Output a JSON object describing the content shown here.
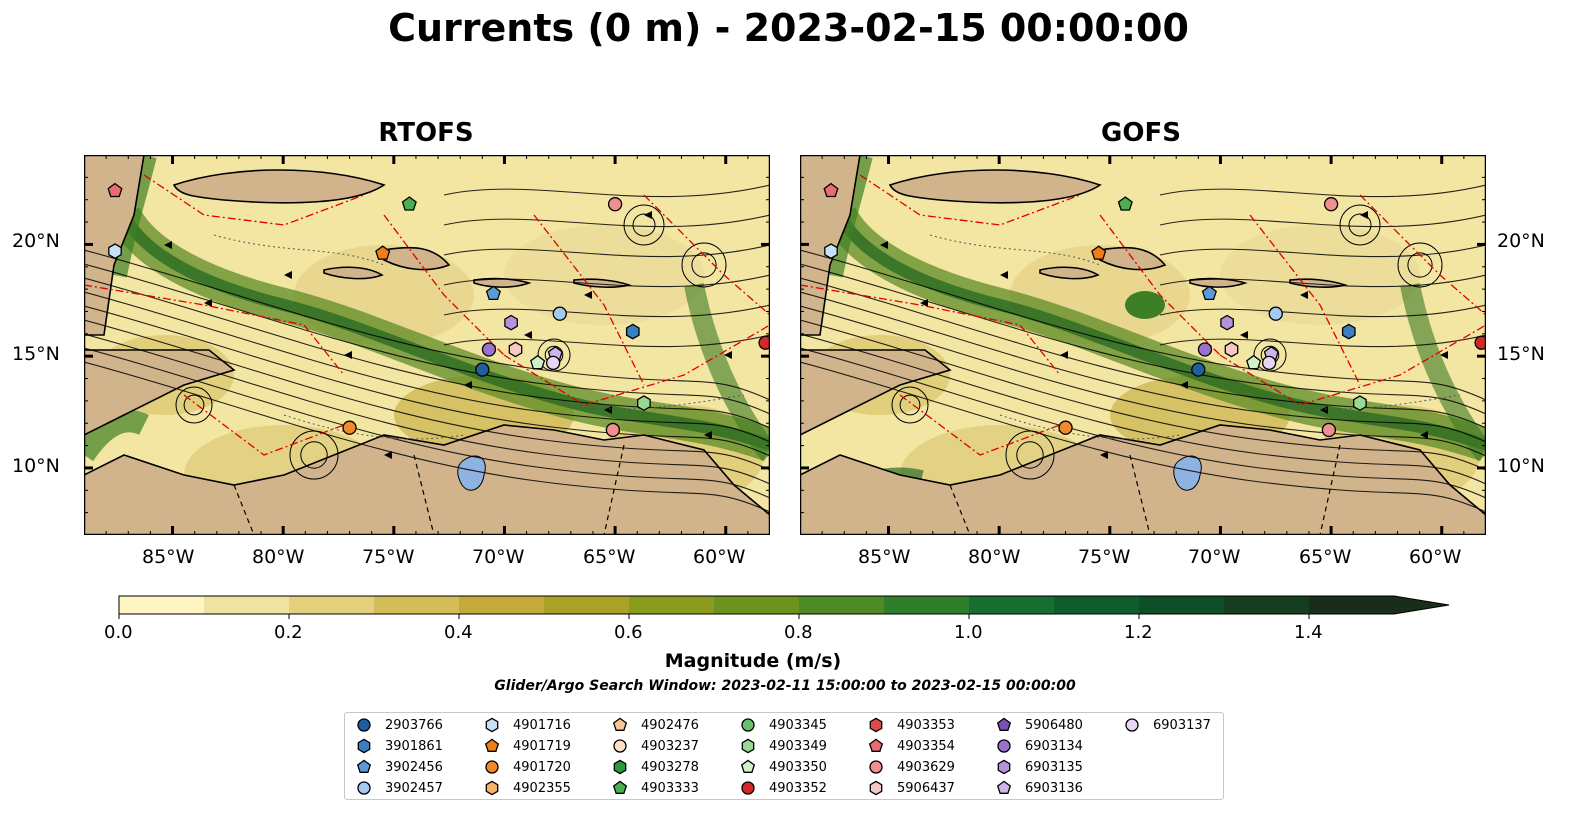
{
  "title": "Currents (0 m) - 2023-02-15 00:00:00",
  "panels": [
    {
      "id": "rtofs",
      "title": "RTOFS"
    },
    {
      "id": "gofs",
      "title": "GOFS"
    }
  ],
  "axes": {
    "lon_labels": [
      "85°W",
      "80°W",
      "75°W",
      "70°W",
      "65°W",
      "60°W"
    ],
    "lat_labels": [
      "20°N",
      "15°N",
      "10°N"
    ],
    "lon_range": [
      -89.0,
      -58.0
    ],
    "lat_range": [
      7.0,
      24.0
    ]
  },
  "colorbar": {
    "label": "Magnitude (m/s)",
    "ticks": [
      "0.0",
      "0.2",
      "0.4",
      "0.6",
      "0.8",
      "1.0",
      "1.2",
      "1.4"
    ],
    "range": [
      0.0,
      1.5
    ],
    "extend": "max",
    "colors": [
      "#fdf6c3",
      "#f0e2a0",
      "#e3cf7c",
      "#d4bc58",
      "#c3aa3a",
      "#a9a227",
      "#8a9b1e",
      "#6c9320",
      "#4e8a25",
      "#2f7e2b",
      "#166e30",
      "#0f5d2c",
      "#0d4d27",
      "#153d20",
      "#1a2d18"
    ]
  },
  "search_window": "Glider/Argo Search Window: 2023-02-11 15:00:00 to 2023-02-15 00:00:00",
  "legend": [
    {
      "id": "2903766",
      "marker": "circle",
      "color": "#1f5fa0"
    },
    {
      "id": "3901861",
      "marker": "hexagon",
      "color": "#3a7fc0"
    },
    {
      "id": "3902456",
      "marker": "pentagon",
      "color": "#5a9ad8"
    },
    {
      "id": "3902457",
      "marker": "circle",
      "color": "#a3cbef"
    },
    {
      "id": "4901716",
      "marker": "hexagon",
      "color": "#c6e0f7"
    },
    {
      "id": "4901719",
      "marker": "pentagon",
      "color": "#f07d18"
    },
    {
      "id": "4901720",
      "marker": "circle",
      "color": "#f28a2a"
    },
    {
      "id": "4902355",
      "marker": "hexagon",
      "color": "#f8b26a"
    },
    {
      "id": "4902476",
      "marker": "pentagon",
      "color": "#f9c594"
    },
    {
      "id": "4903237",
      "marker": "circle",
      "color": "#fde0c3"
    },
    {
      "id": "4903278",
      "marker": "hexagon",
      "color": "#2a9a3a"
    },
    {
      "id": "4903333",
      "marker": "pentagon",
      "color": "#4cb04f"
    },
    {
      "id": "4903345",
      "marker": "circle",
      "color": "#6ac06d"
    },
    {
      "id": "4903349",
      "marker": "hexagon",
      "color": "#9ad895"
    },
    {
      "id": "4903350",
      "marker": "pentagon",
      "color": "#cff2c9"
    },
    {
      "id": "4903352",
      "marker": "circle",
      "color": "#d62728"
    },
    {
      "id": "4903353",
      "marker": "hexagon",
      "color": "#e04a4c"
    },
    {
      "id": "4903354",
      "marker": "pentagon",
      "color": "#ea6a70"
    },
    {
      "id": "4903629",
      "marker": "circle",
      "color": "#f08f8f"
    },
    {
      "id": "5906437",
      "marker": "hexagon",
      "color": "#f8c8c4"
    },
    {
      "id": "5906480",
      "marker": "pentagon",
      "color": "#7a52b3"
    },
    {
      "id": "6903134",
      "marker": "circle",
      "color": "#9a72cc"
    },
    {
      "id": "6903135",
      "marker": "hexagon",
      "color": "#b593dc"
    },
    {
      "id": "6903136",
      "marker": "pentagon",
      "color": "#ceb6ea"
    },
    {
      "id": "6903137",
      "marker": "circle",
      "color": "#e6d6f4"
    }
  ],
  "floats": [
    {
      "id": "4903354",
      "lon": -87.6,
      "lat": 22.4
    },
    {
      "id": "4901716",
      "lon": -87.6,
      "lat": 19.7
    },
    {
      "id": "4903333",
      "lon": -74.3,
      "lat": 21.8
    },
    {
      "id": "4901719",
      "lon": -75.5,
      "lat": 19.6
    },
    {
      "id": "4903629",
      "lon": -65.0,
      "lat": 21.8
    },
    {
      "id": "3902456",
      "lon": -70.5,
      "lat": 17.8
    },
    {
      "id": "6903135",
      "lon": -69.7,
      "lat": 16.5
    },
    {
      "id": "3902457",
      "lon": -67.5,
      "lat": 16.9
    },
    {
      "id": "3901861",
      "lon": -64.2,
      "lat": 16.1
    },
    {
      "id": "6903134",
      "lon": -70.7,
      "lat": 15.3
    },
    {
      "id": "5906437",
      "lon": -69.5,
      "lat": 15.3
    },
    {
      "id": "6903136",
      "lon": -67.7,
      "lat": 15.1
    },
    {
      "id": "4903350",
      "lon": -68.5,
      "lat": 14.7
    },
    {
      "id": "6903137",
      "lon": -67.8,
      "lat": 14.7
    },
    {
      "id": "2903766",
      "lon": -71.0,
      "lat": 14.4
    },
    {
      "id": "4903352",
      "lon": -58.2,
      "lat": 15.6
    },
    {
      "id": "4903349",
      "lon": -63.7,
      "lat": 12.9
    },
    {
      "id": "4901720",
      "lon": -77.0,
      "lat": 11.8
    },
    {
      "id": "4903629",
      "lon": -65.1,
      "lat": 11.7
    }
  ]
}
